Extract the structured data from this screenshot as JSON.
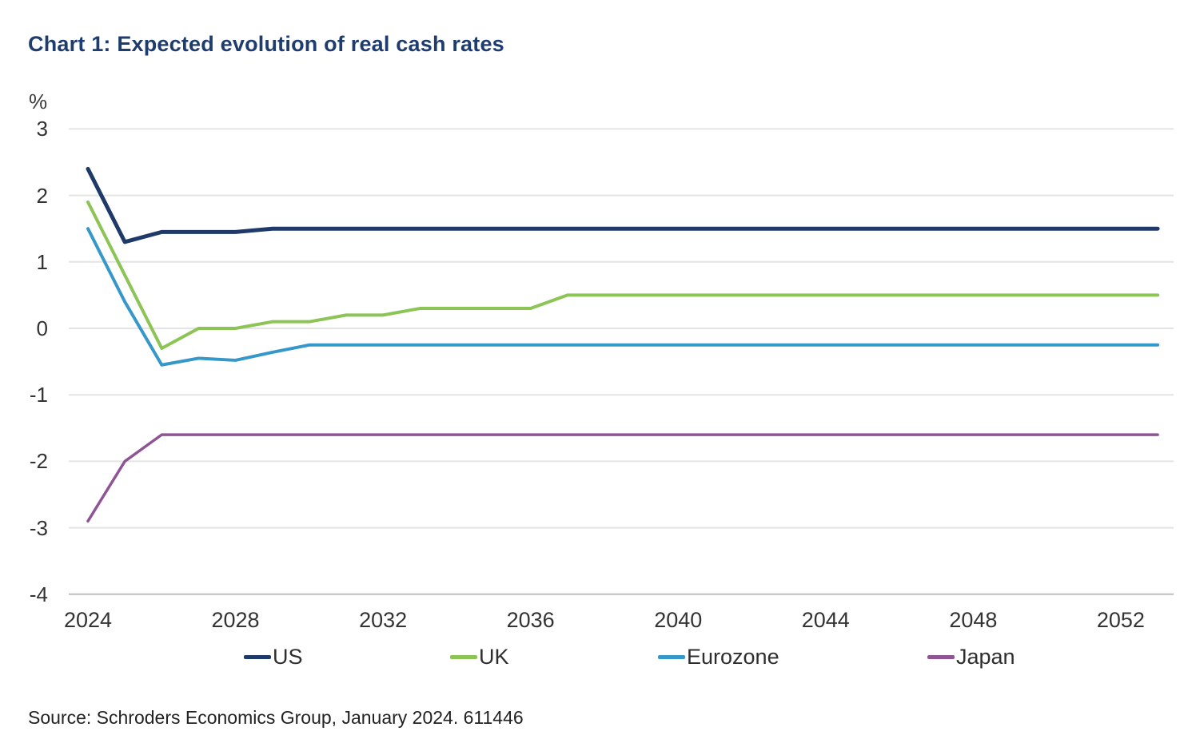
{
  "source": "Source: Schroders Economics Group, January 2024. 611446",
  "colors": {
    "title": "#1e3c6e",
    "gridline": "#e4e4e4",
    "axis_line": "#bdbdbd",
    "tick_text": "#333333"
  },
  "chart_data": {
    "type": "line",
    "title": "Chart 1: Expected evolution of real cash rates",
    "unit": "%",
    "xlabel": "",
    "ylabel": "%",
    "grid": true,
    "legend_position": "bottom",
    "ylim": [
      -4,
      3
    ],
    "yticks": [
      3,
      2,
      1,
      0,
      -1,
      -2,
      -3,
      -4
    ],
    "xticks": [
      2024,
      2028,
      2032,
      2036,
      2040,
      2044,
      2048,
      2052
    ],
    "x": [
      2024,
      2025,
      2026,
      2027,
      2028,
      2029,
      2030,
      2031,
      2032,
      2033,
      2034,
      2035,
      2036,
      2037,
      2038,
      2039,
      2040,
      2041,
      2042,
      2043,
      2044,
      2045,
      2046,
      2047,
      2048,
      2049,
      2050,
      2051,
      2052,
      2053
    ],
    "series": [
      {
        "name": "US",
        "color": "#1f3a68",
        "width": 5,
        "values": [
          2.4,
          1.3,
          1.45,
          1.45,
          1.45,
          1.5,
          1.5,
          1.5,
          1.5,
          1.5,
          1.5,
          1.5,
          1.5,
          1.5,
          1.5,
          1.5,
          1.5,
          1.5,
          1.5,
          1.5,
          1.5,
          1.5,
          1.5,
          1.5,
          1.5,
          1.5,
          1.5,
          1.5,
          1.5,
          1.5
        ]
      },
      {
        "name": "UK",
        "color": "#8cc455",
        "width": 4,
        "values": [
          1.9,
          0.8,
          -0.3,
          0,
          0,
          0.1,
          0.1,
          0.2,
          0.2,
          0.3,
          0.3,
          0.3,
          0.3,
          0.5,
          0.5,
          0.5,
          0.5,
          0.5,
          0.5,
          0.5,
          0.5,
          0.5,
          0.5,
          0.5,
          0.5,
          0.5,
          0.5,
          0.5,
          0.5,
          0.5
        ]
      },
      {
        "name": "Eurozone",
        "color": "#3598c8",
        "width": 4,
        "values": [
          1.5,
          0.4,
          -0.55,
          -0.45,
          -0.48,
          -0.36,
          -0.25,
          -0.25,
          -0.25,
          -0.25,
          -0.25,
          -0.25,
          -0.25,
          -0.25,
          -0.25,
          -0.25,
          -0.25,
          -0.25,
          -0.25,
          -0.25,
          -0.25,
          -0.25,
          -0.25,
          -0.25,
          -0.25,
          -0.25,
          -0.25,
          -0.25,
          -0.25,
          -0.25
        ]
      },
      {
        "name": "Japan",
        "color": "#8e5494",
        "width": 3.5,
        "values": [
          -2.9,
          -2.0,
          -1.6,
          -1.6,
          -1.6,
          -1.6,
          -1.6,
          -1.6,
          -1.6,
          -1.6,
          -1.6,
          -1.6,
          -1.6,
          -1.6,
          -1.6,
          -1.6,
          -1.6,
          -1.6,
          -1.6,
          -1.6,
          -1.6,
          -1.6,
          -1.6,
          -1.6,
          -1.6,
          -1.6,
          -1.6,
          -1.6,
          -1.6,
          -1.6
        ]
      }
    ]
  }
}
